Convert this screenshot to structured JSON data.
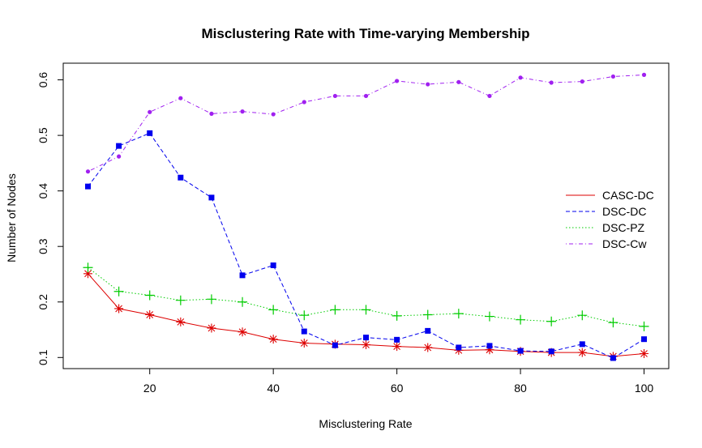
{
  "chart_data": {
    "type": "line",
    "title": "Misclustering Rate with Time-varying Membership",
    "xlabel": "Misclustering Rate",
    "ylabel": "Number of Nodes",
    "xlim": [
      6,
      104
    ],
    "ylim": [
      0.08,
      0.63
    ],
    "xticks": [
      20,
      40,
      60,
      80,
      100
    ],
    "yticks": [
      0.1,
      0.2,
      0.3,
      0.4,
      0.5,
      0.6
    ],
    "x": [
      10,
      15,
      20,
      25,
      30,
      35,
      40,
      45,
      50,
      55,
      60,
      65,
      70,
      75,
      80,
      85,
      90,
      95,
      100
    ],
    "grid": false,
    "legend_position": "right",
    "series": [
      {
        "name": "CASC-DC",
        "color": "#dd0000",
        "line_style": "solid",
        "marker": "asterisk",
        "values": [
          0.251,
          0.188,
          0.177,
          0.164,
          0.153,
          0.146,
          0.133,
          0.126,
          0.124,
          0.123,
          0.12,
          0.118,
          0.113,
          0.114,
          0.111,
          0.109,
          0.109,
          0.102,
          0.107
        ]
      },
      {
        "name": "DSC-DC",
        "color": "#0000ee",
        "line_style": "dashed",
        "marker": "square",
        "values": [
          0.408,
          0.481,
          0.504,
          0.424,
          0.388,
          0.248,
          0.266,
          0.147,
          0.122,
          0.136,
          0.132,
          0.148,
          0.118,
          0.121,
          0.112,
          0.111,
          0.124,
          0.099,
          0.133
        ]
      },
      {
        "name": "DSC-PZ",
        "color": "#00cc00",
        "line_style": "dotted",
        "marker": "plus",
        "values": [
          0.262,
          0.219,
          0.212,
          0.203,
          0.205,
          0.2,
          0.186,
          0.176,
          0.186,
          0.186,
          0.175,
          0.177,
          0.179,
          0.174,
          0.168,
          0.165,
          0.176,
          0.163,
          0.156
        ]
      },
      {
        "name": "DSC-Cw",
        "color": "#a020f0",
        "line_style": "dotdash",
        "marker": "dot",
        "values": [
          0.435,
          0.462,
          0.542,
          0.567,
          0.539,
          0.543,
          0.538,
          0.56,
          0.571,
          0.571,
          0.598,
          0.592,
          0.596,
          0.571,
          0.604,
          0.595,
          0.597,
          0.606,
          0.609
        ]
      }
    ]
  }
}
